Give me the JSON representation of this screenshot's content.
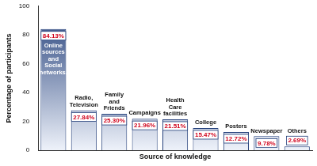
{
  "chart_data": {
    "type": "bar",
    "x_label": "Source of knowledge",
    "y_label": "Percentage of participants",
    "categories": [
      "Online sources and Social networks.",
      "Radio, Television",
      "Family and Friends",
      "Campaigns",
      "Health Care facilities",
      "College",
      "Posters",
      "Newspaper",
      "Others"
    ],
    "values": [
      84.13,
      27.84,
      25.3,
      21.96,
      21.51,
      15.47,
      12.72,
      9.78,
      2.69
    ],
    "value_labels": [
      "84.13%",
      "27.84%",
      "25.30%",
      "21.96%",
      "21.51%",
      "15.47%",
      "12.72%",
      "9.78%",
      "2.69%"
    ],
    "data_labels": true,
    "color": "#233f7a",
    "ylim": [
      0,
      100
    ],
    "yticks": [
      0,
      20,
      40,
      60,
      80,
      100
    ],
    "grid": false,
    "tick_labels": "y"
  }
}
